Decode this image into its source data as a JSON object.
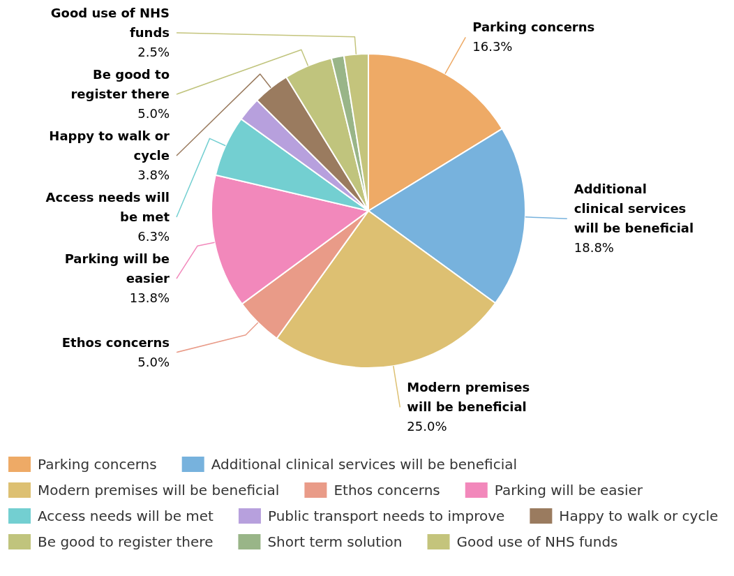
{
  "chart_data": {
    "type": "pie",
    "categories": [
      "Parking concerns",
      "Additional clinical services will be beneficial",
      "Modern premises will be beneficial",
      "Ethos concerns",
      "Parking will be easier",
      "Access needs will be met",
      "Public transport needs to improve",
      "Happy to walk or cycle",
      "Be good to register there",
      "Short term solution",
      "Good use of NHS funds"
    ],
    "values": [
      16.3,
      18.8,
      25.0,
      5.0,
      13.8,
      6.3,
      2.5,
      3.8,
      5.0,
      1.3,
      2.5
    ],
    "value_labels": [
      "16.3%",
      "18.8%",
      "25.0%",
      "5.0%",
      "13.8%",
      "6.3%",
      null,
      "3.8%",
      "5.0%",
      null,
      "2.5%"
    ],
    "colors": [
      "#eeaa66",
      "#77b2dd",
      "#ddc072",
      "#e99b88",
      "#f288bb",
      "#73cfd1",
      "#b7a0dd",
      "#9a7b5f",
      "#c0c47d",
      "#99b588",
      "#c4c47c"
    ],
    "legend": "bottom"
  }
}
